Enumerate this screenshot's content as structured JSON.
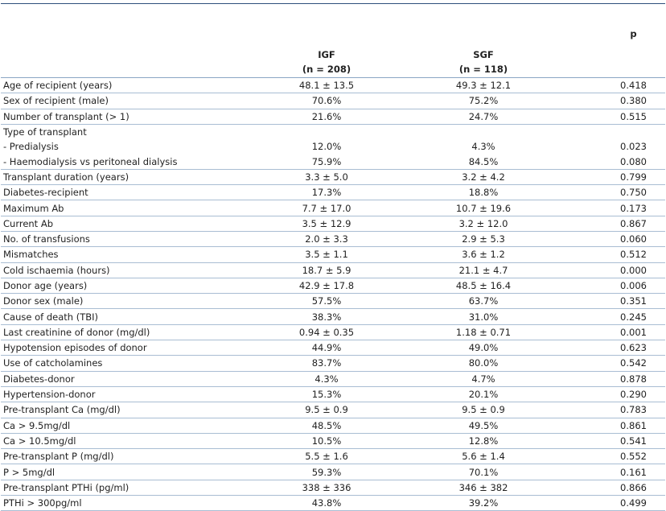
{
  "header": {
    "igf": {
      "name": "IGF",
      "n": "(n = 208)"
    },
    "sgf": {
      "name": "SGF",
      "n": "(n = 118)"
    },
    "p": "p"
  },
  "rows": [
    {
      "label": "Age of recipient (years)",
      "igf": "48.1 ± 13.5",
      "sgf": "49.3 ± 12.1",
      "p": "0.418"
    },
    {
      "label": "Sex of recipient (male)",
      "igf": "70.6%",
      "sgf": "75.2%",
      "p": "0.380"
    },
    {
      "label": "Number of transplant (> 1)",
      "igf": "21.6%",
      "sgf": "24.7%",
      "p": "0.515"
    },
    {
      "label": "Type of transplant",
      "subrows": [
        {
          "label": "- Predialysis",
          "igf": "12.0%",
          "sgf": "4.3%",
          "p": "0.023"
        },
        {
          "label": "- Haemodialysis vs peritoneal dialysis",
          "igf": "75.9%",
          "sgf": "84.5%",
          "p": "0.080"
        }
      ]
    },
    {
      "label": "Transplant duration (years)",
      "igf": "3.3 ± 5.0",
      "sgf": "3.2 ± 4.2",
      "p": "0.799"
    },
    {
      "label": "Diabetes-recipient",
      "igf": "17.3%",
      "sgf": "18.8%",
      "p": "0.750"
    },
    {
      "label": "Maximum Ab",
      "igf": "7.7 ± 17.0",
      "sgf": "10.7 ± 19.6",
      "p": "0.173"
    },
    {
      "label": "Current Ab",
      "igf": "3.5 ± 12.9",
      "sgf": "3.2 ± 12.0",
      "p": "0.867"
    },
    {
      "label": "No. of transfusions",
      "igf": "2.0 ± 3.3",
      "sgf": "2.9 ± 5.3",
      "p": "0.060"
    },
    {
      "label": "Mismatches",
      "igf": "3.5 ± 1.1",
      "sgf": "3.6 ± 1.2",
      "p": "0.512"
    },
    {
      "label": "Cold ischaemia (hours)",
      "igf": "18.7 ± 5.9",
      "sgf": "21.1 ± 4.7",
      "p": "0.000"
    },
    {
      "label": "Donor age (years)",
      "igf": "42.9 ± 17.8",
      "sgf": "48.5 ± 16.4",
      "p": "0.006"
    },
    {
      "label": "Donor sex (male)",
      "igf": "57.5%",
      "sgf": "63.7%",
      "p": "0.351"
    },
    {
      "label": "Cause of death (TBI)",
      "igf": "38.3%",
      "sgf": "31.0%",
      "p": "0.245"
    },
    {
      "label": "Last creatinine of donor (mg/dl)",
      "igf": "0.94 ± 0.35",
      "sgf": "1.18 ± 0.71",
      "p": "0.001"
    },
    {
      "label": "Hypotension episodes of donor",
      "igf": "44.9%",
      "sgf": "49.0%",
      "p": "0.623"
    },
    {
      "label": "Use of catcholamines",
      "igf": "83.7%",
      "sgf": "80.0%",
      "p": "0.542"
    },
    {
      "label": "Diabetes-donor",
      "igf": "4.3%",
      "sgf": "4.7%",
      "p": "0.878"
    },
    {
      "label": "Hypertension-donor",
      "igf": "15.3%",
      "sgf": "20.1%",
      "p": "0.290"
    },
    {
      "label": "Pre-transplant Ca (mg/dl)",
      "igf": "9.5 ± 0.9",
      "sgf": "9.5 ± 0.9",
      "p": "0.783"
    },
    {
      "label": "Ca > 9.5mg/dl",
      "igf": "48.5%",
      "sgf": "49.5%",
      "p": "0.861"
    },
    {
      "label": "Ca > 10.5mg/dl",
      "igf": "10.5%",
      "sgf": "12.8%",
      "p": "0.541"
    },
    {
      "label": "Pre-transplant P (mg/dl)",
      "igf": "5.5 ± 1.6",
      "sgf": "5.6 ± 1.4",
      "p": "0.552"
    },
    {
      "label": "P > 5mg/dl",
      "igf": "59.3%",
      "sgf": "70.1%",
      "p": "0.161"
    },
    {
      "label": "Pre-transplant PTHi (pg/ml)",
      "igf": "338 ± 336",
      "sgf": "346 ± 382",
      "p": "0.866"
    },
    {
      "label": "PTHi > 300pg/ml",
      "igf": "43.8%",
      "sgf": "39.2%",
      "p": "0.499"
    }
  ]
}
